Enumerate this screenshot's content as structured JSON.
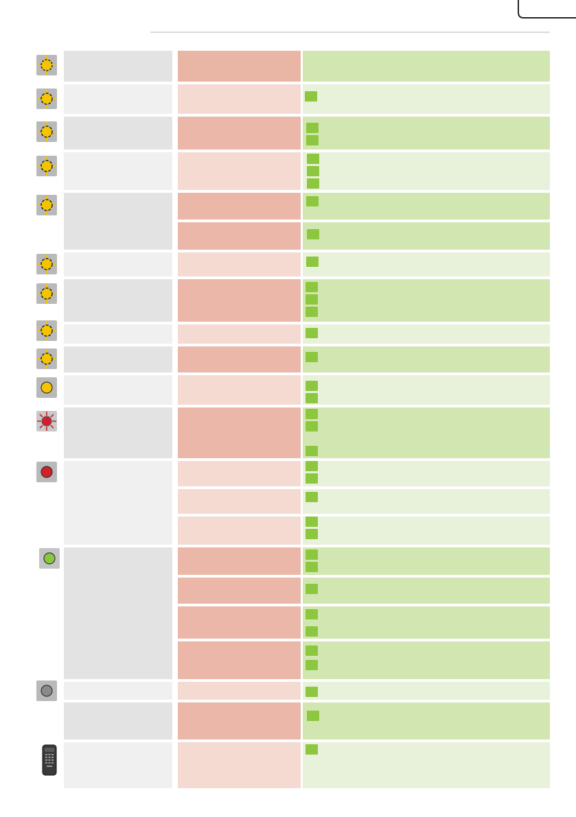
{
  "page": {
    "crop_marks": "registration",
    "divider": "header-rule"
  },
  "colors": {
    "col1_dark": "#e3e3e3",
    "col1_light": "#f0f0f0",
    "col2_dark": "#eab7a8",
    "col2_light": "#f5dad2",
    "col3_dark": "#d2e6b1",
    "col3_light": "#e8f1d9",
    "checkbox_green": "#8dc63f",
    "lamp_yellow": "#f5c400",
    "lamp_red": "#d0202a",
    "lamp_green": "#8cc63f",
    "lamp_grey": "#8a8a8a"
  },
  "icons": {
    "blink_yellow_dashed": "lamp-blinking-dashed-icon",
    "blink_yellow": "lamp-blinking-yellow-icon",
    "steady_yellow": "lamp-steady-yellow-icon",
    "blink_red": "lamp-blinking-red-icon",
    "steady_red": "lamp-steady-red-icon",
    "steady_green": "lamp-steady-green-icon",
    "off_grey": "lamp-off-icon",
    "remote": "remote-control-icon"
  },
  "table": {
    "header": {
      "status": "",
      "cause": "",
      "solution": ""
    },
    "rows_count": 17
  }
}
